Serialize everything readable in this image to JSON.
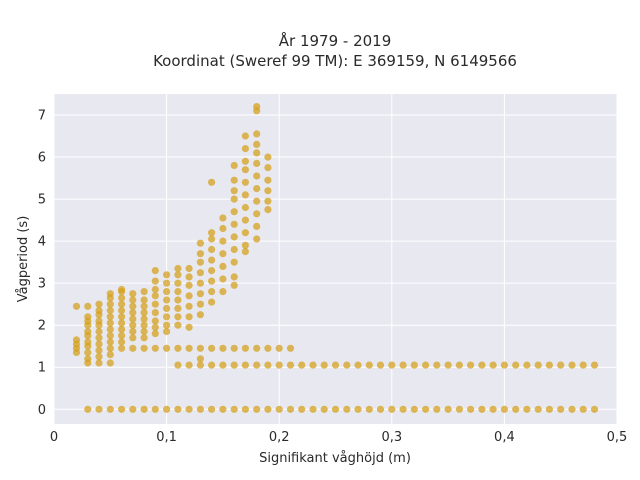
{
  "chart_data": {
    "type": "scatter",
    "title": "År 1979 - 2019",
    "subtitle": "Koordinat (Sweref 99 TM): E 369159, N 6149566",
    "xlabel": "Signifikant våghöjd (m)",
    "ylabel": "Vågperiod (s)",
    "xlim": [
      0,
      0.5
    ],
    "ylim": [
      -0.35,
      7.5
    ],
    "x_ticks": [
      0,
      0.1,
      0.2,
      0.3,
      0.4,
      0.5
    ],
    "x_tick_labels": [
      "0",
      "0,1",
      "0,2",
      "0,3",
      "0,4",
      "0,5"
    ],
    "y_ticks": [
      0,
      1,
      2,
      3,
      4,
      5,
      6,
      7
    ],
    "y_tick_labels": [
      "0",
      "1",
      "2",
      "3",
      "4",
      "5",
      "6",
      "7"
    ],
    "grid": true,
    "point_color": "#D4A017",
    "clusters": [
      {
        "x": 0.02,
        "y": [
          1.35,
          1.45,
          1.55,
          1.65,
          2.45
        ]
      },
      {
        "x": 0.03,
        "y": [
          0,
          1.1,
          1.2,
          1.35,
          1.5,
          1.6,
          1.75,
          1.85,
          2.0,
          2.1,
          2.2,
          2.45
        ]
      },
      {
        "x": 0.04,
        "y": [
          0,
          1.1,
          1.25,
          1.4,
          1.55,
          1.7,
          1.85,
          2.0,
          2.1,
          2.25,
          2.35,
          2.5
        ]
      },
      {
        "x": 0.05,
        "y": [
          0,
          1.1,
          1.3,
          1.45,
          1.6,
          1.75,
          1.9,
          2.05,
          2.2,
          2.35,
          2.5,
          2.65,
          2.75
        ]
      },
      {
        "x": 0.06,
        "y": [
          0,
          1.45,
          1.6,
          1.75,
          1.9,
          2.05,
          2.2,
          2.35,
          2.5,
          2.65,
          2.8,
          2.85
        ]
      },
      {
        "x": 0.07,
        "y": [
          0,
          1.45,
          1.7,
          1.85,
          2.0,
          2.15,
          2.3,
          2.45,
          2.6,
          2.75
        ]
      },
      {
        "x": 0.08,
        "y": [
          0,
          1.45,
          1.7,
          1.85,
          2.0,
          2.15,
          2.3,
          2.45,
          2.6,
          2.8
        ]
      },
      {
        "x": 0.09,
        "y": [
          0,
          1.45,
          1.8,
          1.95,
          2.1,
          2.3,
          2.5,
          2.7,
          2.85,
          3.05,
          3.3
        ]
      },
      {
        "x": 0.1,
        "y": [
          0,
          1.45,
          1.85,
          2.0,
          2.2,
          2.4,
          2.6,
          2.8,
          3.0,
          3.2
        ]
      },
      {
        "x": 0.11,
        "y": [
          0,
          1.05,
          1.45,
          2.0,
          2.2,
          2.4,
          2.6,
          2.8,
          3.0,
          3.2,
          3.35
        ]
      },
      {
        "x": 0.12,
        "y": [
          0,
          1.05,
          1.45,
          1.95,
          2.2,
          2.45,
          2.7,
          2.95,
          3.15,
          3.35
        ]
      },
      {
        "x": 0.13,
        "y": [
          0,
          1.05,
          1.2,
          1.45,
          2.25,
          2.5,
          2.75,
          3.0,
          3.25,
          3.5,
          3.7,
          3.95
        ]
      },
      {
        "x": 0.14,
        "y": [
          0,
          1.05,
          1.45,
          2.55,
          2.8,
          3.05,
          3.3,
          3.55,
          3.8,
          4.05,
          4.2,
          5.4
        ]
      },
      {
        "x": 0.15,
        "y": [
          0,
          1.05,
          1.45,
          2.8,
          3.1,
          3.4,
          3.7,
          4.0,
          4.3,
          4.55
        ]
      },
      {
        "x": 0.16,
        "y": [
          0,
          1.05,
          1.45,
          2.95,
          3.15,
          3.5,
          3.8,
          4.1,
          4.4,
          4.7,
          5.0,
          5.2,
          5.45,
          5.8
        ]
      },
      {
        "x": 0.17,
        "y": [
          0,
          1.05,
          1.45,
          3.75,
          3.9,
          4.2,
          4.5,
          4.8,
          5.1,
          5.4,
          5.7,
          5.9,
          6.2,
          6.5
        ]
      },
      {
        "x": 0.18,
        "y": [
          0,
          1.05,
          1.45,
          4.05,
          4.35,
          4.65,
          4.95,
          5.25,
          5.55,
          5.85,
          6.1,
          6.3,
          6.55,
          7.1,
          7.2
        ]
      },
      {
        "x": 0.19,
        "y": [
          0,
          1.05,
          1.45,
          4.75,
          4.95,
          5.2,
          5.45,
          5.75,
          6.0
        ]
      },
      {
        "x": 0.2,
        "y": [
          0,
          1.05,
          1.45
        ]
      },
      {
        "x": 0.21,
        "y": [
          0,
          1.05,
          1.45
        ]
      }
    ],
    "bands": [
      {
        "y": 0,
        "x_from": 0.22,
        "x_to": 0.48,
        "step": 0.01
      },
      {
        "y": 1.05,
        "x_from": 0.22,
        "x_to": 0.48,
        "step": 0.01
      }
    ]
  }
}
